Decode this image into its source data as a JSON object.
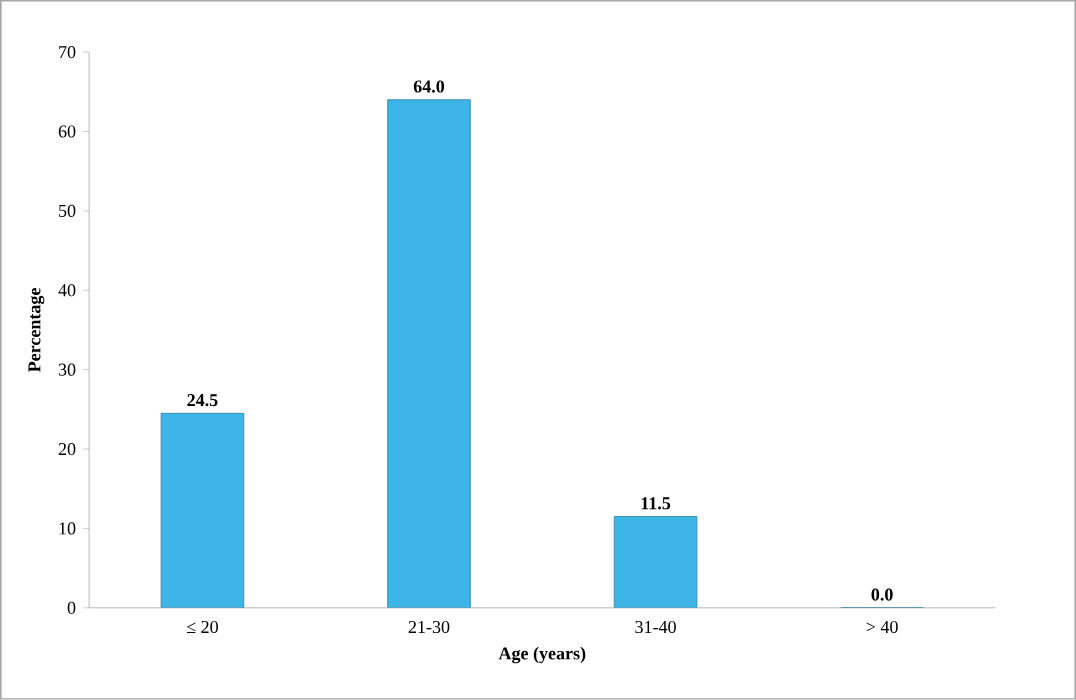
{
  "chart_data": {
    "type": "bar",
    "xlabel": "Age (years)",
    "ylabel": "Percentage",
    "categories": [
      "≤ 20",
      "21-30",
      "31-40",
      "> 40"
    ],
    "values": [
      24.5,
      64.0,
      11.5,
      0.0
    ],
    "value_labels": [
      "24.5",
      "64.0",
      "11.5",
      "0.0"
    ],
    "color": "#3db5e6",
    "ylim": [
      0,
      70
    ],
    "yticks": [
      0,
      10,
      20,
      30,
      40,
      50,
      60,
      70
    ]
  }
}
